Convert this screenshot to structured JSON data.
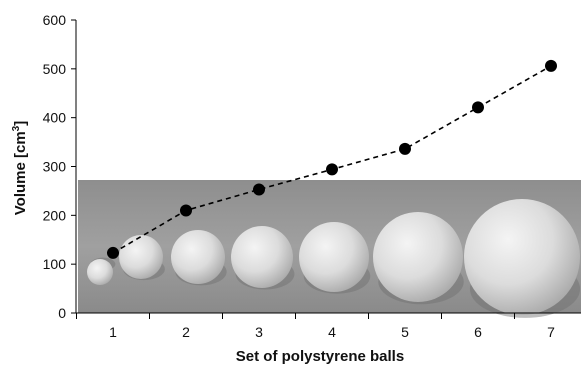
{
  "chart_data": {
    "type": "line",
    "title": "",
    "xlabel": "Set of polystyrene balls",
    "ylabel_main": "Volume [cm",
    "ylabel_sup": "3",
    "ylabel_close": "]",
    "ylim": [
      0,
      600
    ],
    "yticks": [
      0,
      100,
      200,
      300,
      400,
      500,
      600
    ],
    "categories": [
      "1",
      "2",
      "3",
      "4",
      "5",
      "6",
      "7"
    ],
    "series": [
      {
        "values": [
          123,
          210,
          253,
          294,
          336,
          421,
          506
        ]
      }
    ],
    "line_style": "dashed",
    "marker": "filled-circle",
    "marker_color": "#000000",
    "grid": false,
    "background_photo": "row of seven sets of white polystyrene balls of increasing size on a grey surface"
  }
}
